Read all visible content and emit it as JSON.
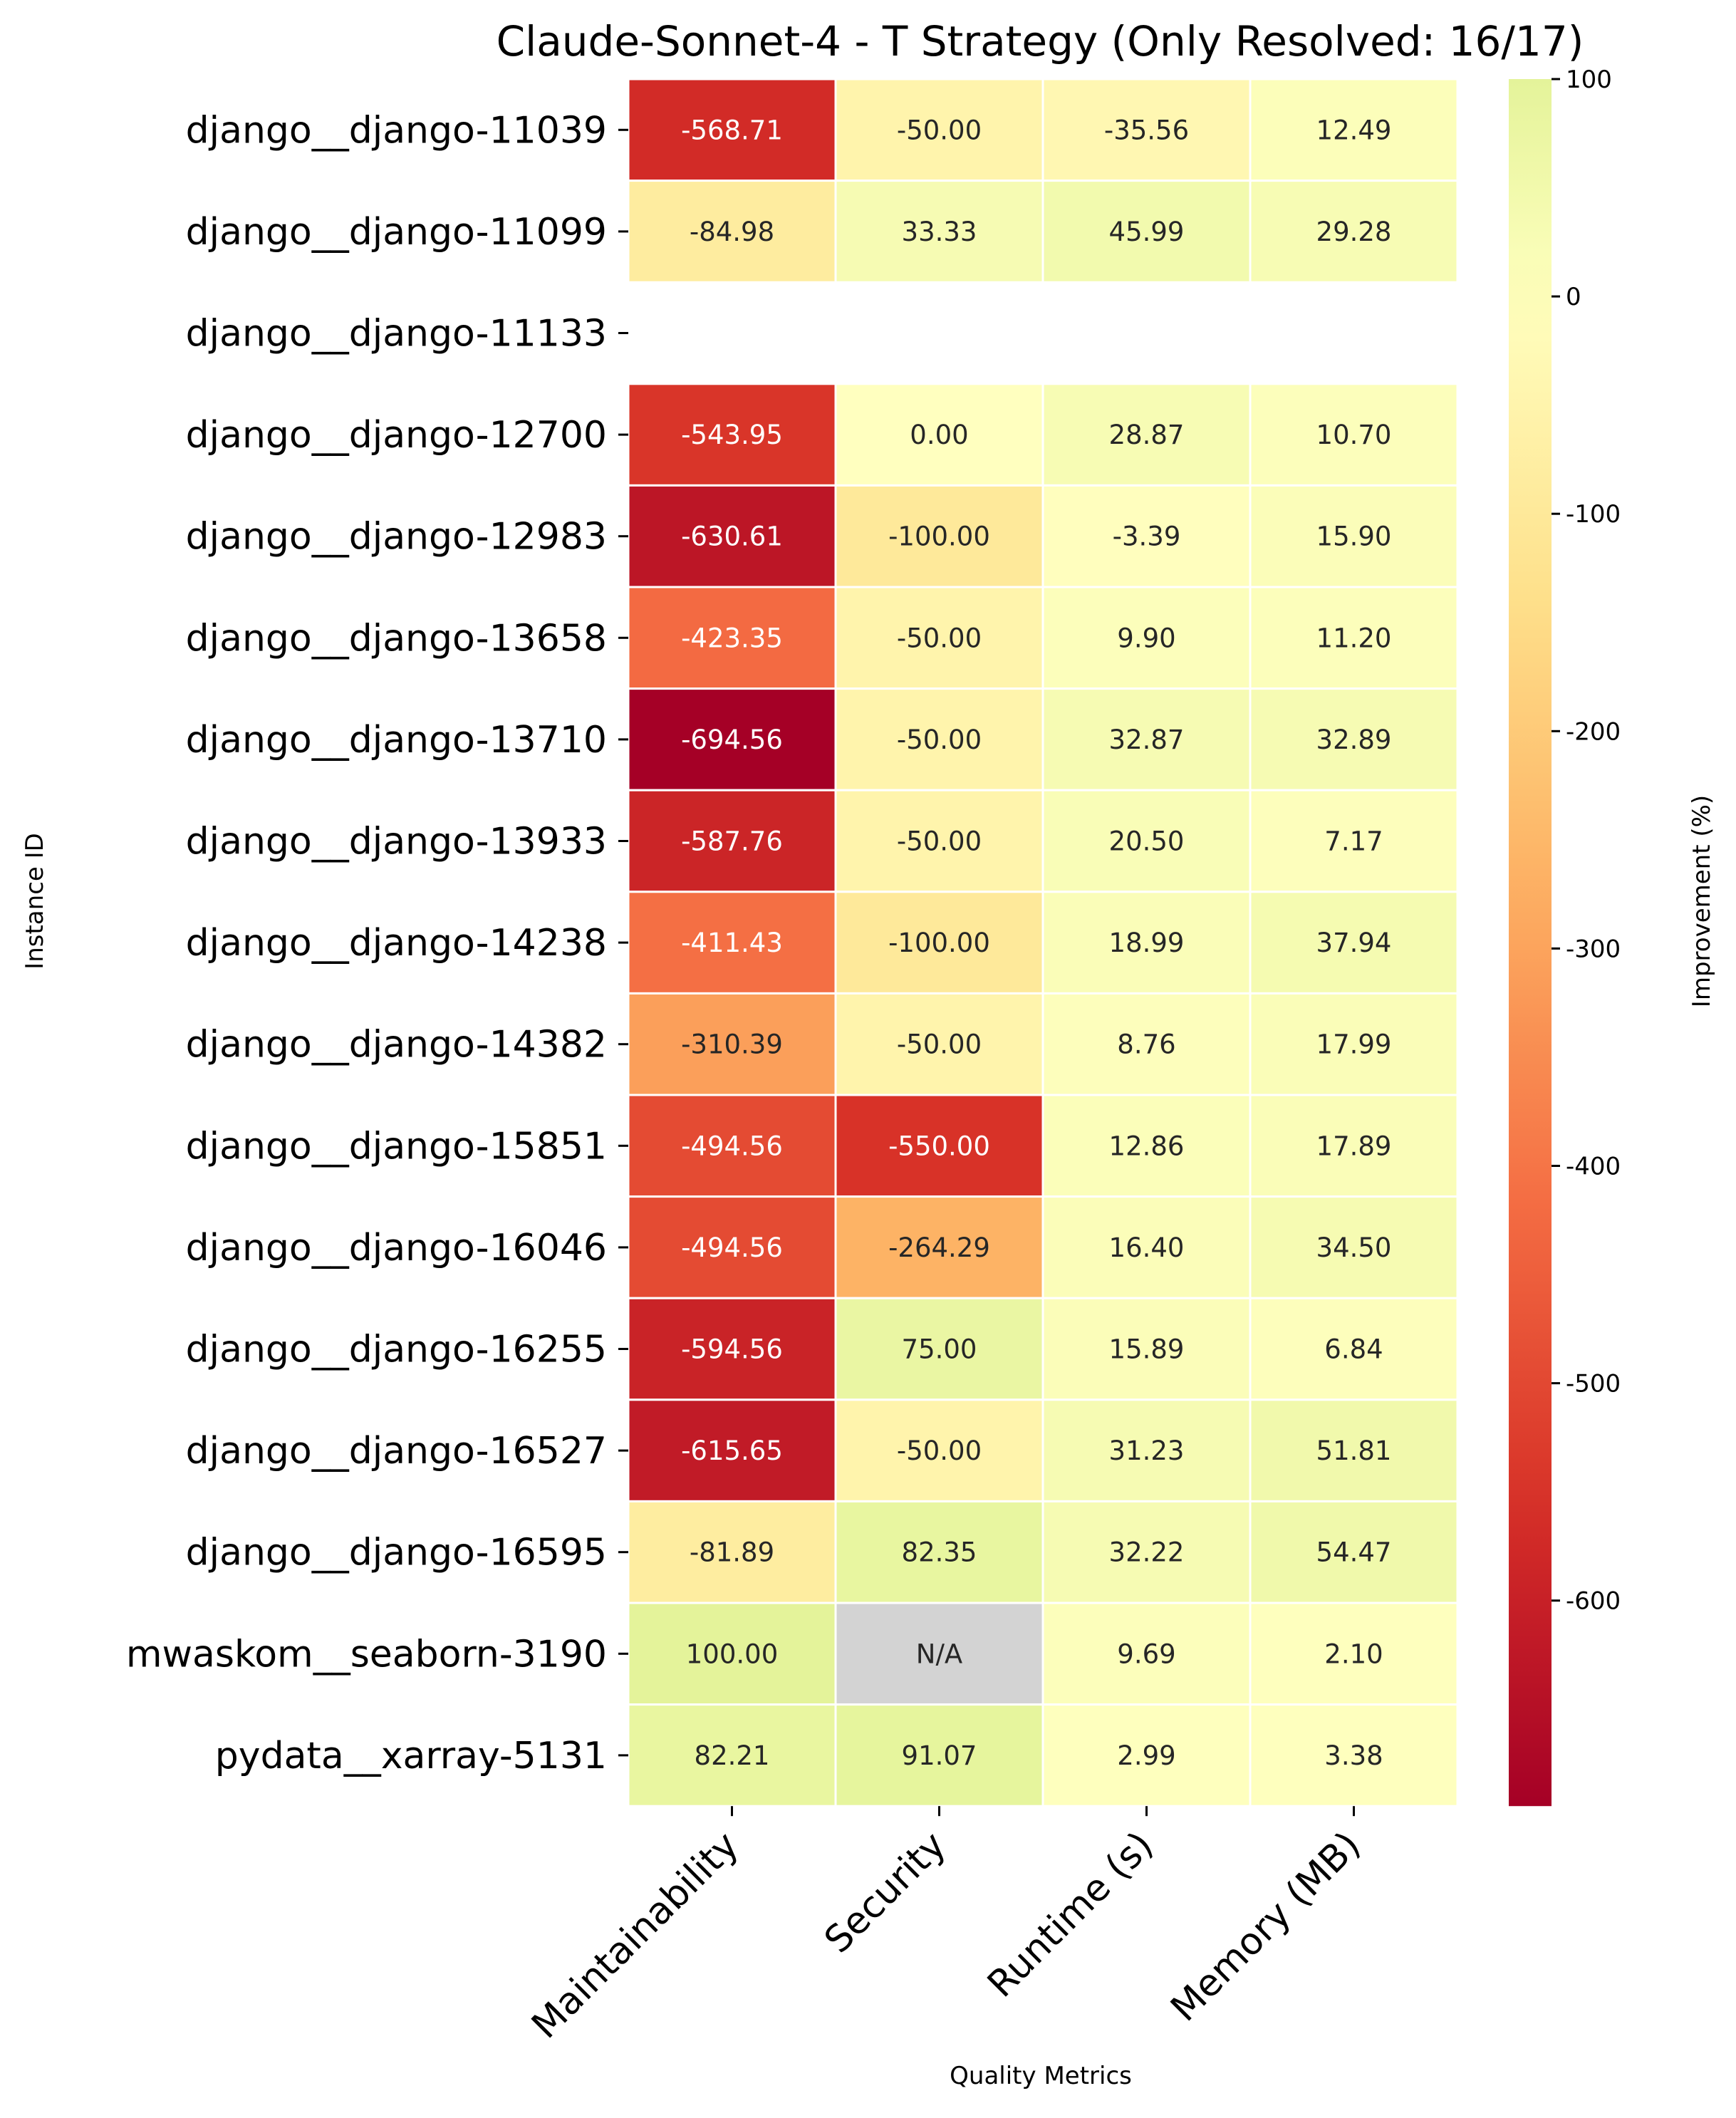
{
  "chart_data": {
    "type": "heatmap",
    "title": "Claude-Sonnet-4 - T Strategy (Only Resolved: 16/17)",
    "xlabel": "Quality Metrics",
    "ylabel": "Instance ID",
    "columns": [
      "Maintainability",
      "Security",
      "Runtime (s)",
      "Memory (MB)"
    ],
    "rows": [
      "django__django-11039",
      "django__django-11099",
      "django__django-11133",
      "django__django-12700",
      "django__django-12983",
      "django__django-13658",
      "django__django-13710",
      "django__django-13933",
      "django__django-14238",
      "django__django-14382",
      "django__django-15851",
      "django__django-16046",
      "django__django-16255",
      "django__django-16527",
      "django__django-16595",
      "mwaskom__seaborn-3190",
      "pydata__xarray-5131"
    ],
    "values": [
      [
        -568.71,
        -50.0,
        -35.56,
        12.49
      ],
      [
        -84.98,
        33.33,
        45.99,
        29.28
      ],
      [
        null,
        null,
        null,
        null
      ],
      [
        -543.95,
        0.0,
        28.87,
        10.7
      ],
      [
        -630.61,
        -100.0,
        -3.39,
        15.9
      ],
      [
        -423.35,
        -50.0,
        9.9,
        11.2
      ],
      [
        -694.56,
        -50.0,
        32.87,
        32.89
      ],
      [
        -587.76,
        -50.0,
        20.5,
        7.17
      ],
      [
        -411.43,
        -100.0,
        18.99,
        37.94
      ],
      [
        -310.39,
        -50.0,
        8.76,
        17.99
      ],
      [
        -494.56,
        -550.0,
        12.86,
        17.89
      ],
      [
        -494.56,
        -264.29,
        16.4,
        34.5
      ],
      [
        -594.56,
        75.0,
        15.89,
        6.84
      ],
      [
        -615.65,
        -50.0,
        31.23,
        51.81
      ],
      [
        -81.89,
        82.35,
        32.22,
        54.47
      ],
      [
        100.0,
        "N/A",
        9.69,
        2.1
      ],
      [
        82.21,
        91.07,
        2.99,
        3.38
      ]
    ],
    "colormap": "RdYlGn",
    "na_label": "N/A",
    "na_color": "#d3d3d3",
    "vmin": -694.56,
    "vmax": 100,
    "colorbar": {
      "label": "Improvement (%)",
      "ticks": [
        100,
        0,
        -100,
        -200,
        -300,
        -400,
        -500,
        -600
      ]
    }
  }
}
